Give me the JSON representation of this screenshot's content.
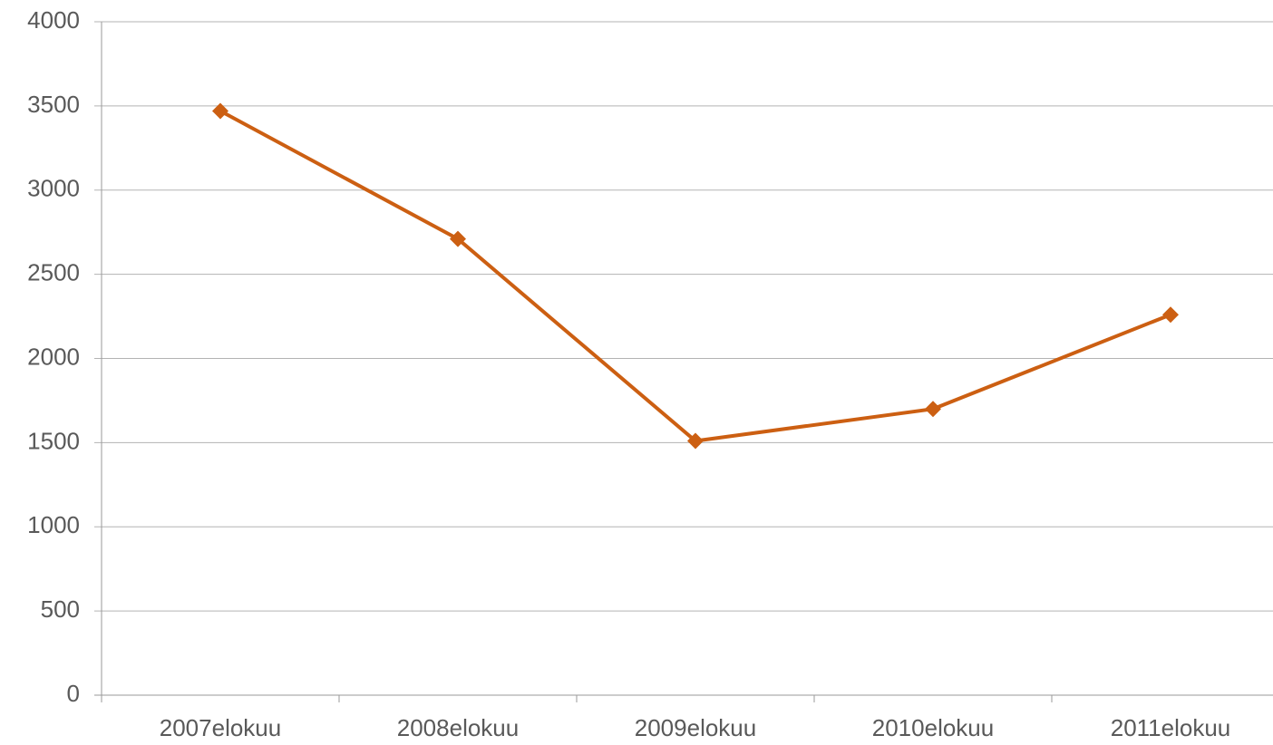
{
  "chart_data": {
    "type": "line",
    "categories": [
      "2007elokuu",
      "2008elokuu",
      "2009elokuu",
      "2010elokuu",
      "2011elokuu"
    ],
    "series": [
      {
        "name": null,
        "color": "#cc5f12",
        "values": [
          3470,
          2710,
          1510,
          1700,
          2260
        ]
      }
    ],
    "ylim": [
      0,
      4000
    ],
    "yticks": [
      0,
      500,
      1000,
      1500,
      2000,
      2500,
      3000,
      3500,
      4000
    ],
    "grid": true,
    "marker": "diamond"
  }
}
